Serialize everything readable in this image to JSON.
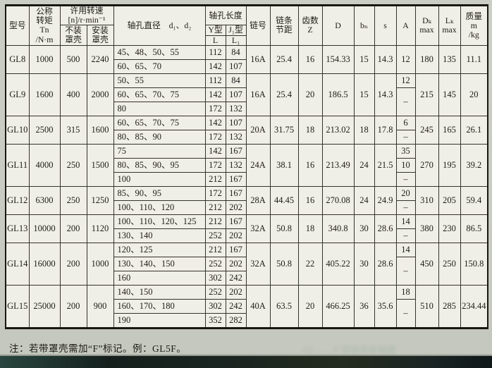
{
  "table": {
    "header": {
      "model": "型号",
      "torque": "公称\n转矩\nTn\n/N·m",
      "speed_group": "许用转速\n[n]/r·min⁻¹",
      "speed_open": "不装\n罩壳",
      "speed_cover": "安装\n罩壳",
      "bores": "轴孔直径　d₁、d₂",
      "hole_len_group": "轴孔长度",
      "y_type": "Y型",
      "j_type": "J₁型",
      "L": "L",
      "L1": "L₁",
      "chain_no": "链号",
      "pitch": "链条\n节距",
      "teeth": "齿数\nZ",
      "D": "D",
      "bn": "bₙ",
      "s": "s",
      "A": "A",
      "Dk": "Dₖ\nmax",
      "Lk": "Lₖ\nmax",
      "mass": "质量\nm\n/kg"
    },
    "blocks": [
      {
        "model": "GL8",
        "torque": "1000",
        "speed_open": "500",
        "speed_cover": "2240",
        "rows": [
          {
            "bores": "45、48、50、55",
            "L": "112",
            "L1": "84"
          },
          {
            "bores": "60、65、70",
            "L": "142",
            "L1": "107"
          }
        ],
        "chain_no": "16A",
        "pitch": "25.4",
        "teeth": "16",
        "D": "154.33",
        "bn": "15",
        "s": "14.3",
        "A": [
          {
            "v": "12",
            "span": 2
          }
        ],
        "Dk": "180",
        "Lk": "135",
        "mass": "11.1"
      },
      {
        "model": "GL9",
        "torque": "1600",
        "speed_open": "400",
        "speed_cover": "2000",
        "rows": [
          {
            "bores": "50、55",
            "L": "112",
            "L1": "84"
          },
          {
            "bores": "60、65、70、75",
            "L": "142",
            "L1": "107"
          },
          {
            "bores": "80",
            "L": "172",
            "L1": "132"
          }
        ],
        "chain_no": "16A",
        "pitch": "25.4",
        "teeth": "20",
        "D": "186.5",
        "bn": "15",
        "s": "14.3",
        "A": [
          {
            "v": "12",
            "span": 1
          },
          {
            "v": "–",
            "span": 2
          }
        ],
        "Dk": "215",
        "Lk": "145",
        "mass": "20"
      },
      {
        "model": "GL10",
        "torque": "2500",
        "speed_open": "315",
        "speed_cover": "1600",
        "rows": [
          {
            "bores": "60、65、70、75",
            "L": "142",
            "L1": "107"
          },
          {
            "bores": "80、85、90",
            "L": "172",
            "L1": "132"
          }
        ],
        "chain_no": "20A",
        "pitch": "31.75",
        "teeth": "18",
        "D": "213.02",
        "bn": "18",
        "s": "17.8",
        "A": [
          {
            "v": "6",
            "span": 1
          },
          {
            "v": "–",
            "span": 1
          }
        ],
        "Dk": "245",
        "Lk": "165",
        "mass": "26.1"
      },
      {
        "model": "GL11",
        "torque": "4000",
        "speed_open": "250",
        "speed_cover": "1500",
        "rows": [
          {
            "bores": "75",
            "L": "142",
            "L1": "167"
          },
          {
            "bores": "80、85、90、95",
            "L": "172",
            "L1": "132"
          },
          {
            "bores": "100",
            "L": "212",
            "L1": "167"
          }
        ],
        "chain_no": "24A",
        "pitch": "38.1",
        "teeth": "16",
        "D": "213.49",
        "bn": "24",
        "s": "21.5",
        "A": [
          {
            "v": "35",
            "span": 1
          },
          {
            "v": "10",
            "span": 1
          },
          {
            "v": "–",
            "span": 1
          }
        ],
        "Dk": "270",
        "Lk": "195",
        "mass": "39.2"
      },
      {
        "model": "GL12",
        "torque": "6300",
        "speed_open": "250",
        "speed_cover": "1250",
        "rows": [
          {
            "bores": "85、90、95",
            "L": "172",
            "L1": "167"
          },
          {
            "bores": "100、110、120",
            "L": "212",
            "L1": "202"
          }
        ],
        "chain_no": "28A",
        "pitch": "44.45",
        "teeth": "16",
        "D": "270.08",
        "bn": "24",
        "s": "24.9",
        "A": [
          {
            "v": "20",
            "span": 1
          },
          {
            "v": "–",
            "span": 1
          }
        ],
        "Dk": "310",
        "Lk": "205",
        "mass": "59.4"
      },
      {
        "model": "GL13",
        "torque": "10000",
        "speed_open": "200",
        "speed_cover": "1120",
        "rows": [
          {
            "bores": "100、110、120、125",
            "L": "212",
            "L1": "167"
          },
          {
            "bores": "130、140",
            "L": "252",
            "L1": "202"
          }
        ],
        "chain_no": "32A",
        "pitch": "50.8",
        "teeth": "18",
        "D": "340.8",
        "bn": "30",
        "s": "28.6",
        "A": [
          {
            "v": "14",
            "span": 1
          },
          {
            "v": "–",
            "span": 1
          }
        ],
        "Dk": "380",
        "Lk": "230",
        "mass": "86.5"
      },
      {
        "model": "GL14",
        "torque": "16000",
        "speed_open": "200",
        "speed_cover": "1000",
        "rows": [
          {
            "bores": "120、125",
            "L": "212",
            "L1": "167"
          },
          {
            "bores": "130、140、150",
            "L": "252",
            "L1": "202"
          },
          {
            "bores": "160",
            "L": "302",
            "L1": "242"
          }
        ],
        "chain_no": "32A",
        "pitch": "50.8",
        "teeth": "22",
        "D": "405.22",
        "bn": "30",
        "s": "28.6",
        "A": [
          {
            "v": "14",
            "span": 1
          },
          {
            "v": "–",
            "span": 2
          }
        ],
        "Dk": "450",
        "Lk": "250",
        "mass": "150.8"
      },
      {
        "model": "GL15",
        "torque": "25000",
        "speed_open": "200",
        "speed_cover": "900",
        "rows": [
          {
            "bores": "140、150",
            "L": "252",
            "L1": "202"
          },
          {
            "bores": "160、170、180",
            "L": "302",
            "L1": "242"
          },
          {
            "bores": "190",
            "L": "352",
            "L1": "282"
          }
        ],
        "chain_no": "40A",
        "pitch": "63.5",
        "teeth": "20",
        "D": "466.25",
        "bn": "36",
        "s": "35.6",
        "A": [
          {
            "v": "18",
            "span": 1
          },
          {
            "v": "–",
            "span": 2
          }
        ],
        "Dk": "510",
        "Lk": "285",
        "mass": "234.44"
      }
    ]
  },
  "note": "注：若带罩壳需加“F”标记。例：GL5F。"
}
